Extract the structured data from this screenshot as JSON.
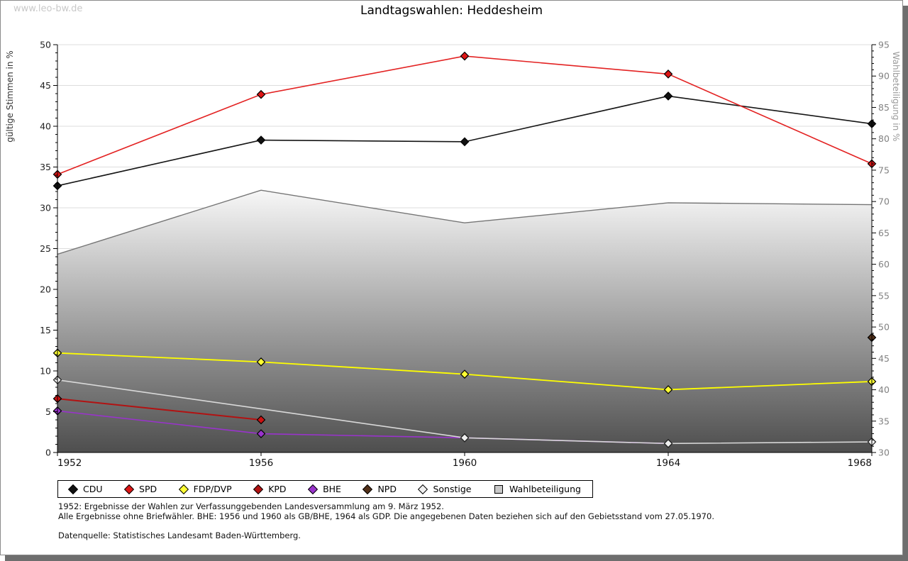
{
  "page": {
    "watermark": "www.leo-bw.de",
    "title": "Landtagswahlen: Heddesheim",
    "footnotes": [
      "1952: Ergebnisse der Wahlen zur Verfassunggebenden Landesversammlung am 9. März 1952.",
      "Alle Ergebnisse ohne Briefwähler. BHE: 1956 und 1960 als GB/BHE, 1964 als GDP. Die angegebenen Daten beziehen sich auf den Gebietsstand vom 27.05.1970.",
      "Datenquelle: Statistisches Landesamt Baden-Württemberg."
    ]
  },
  "chart_data": {
    "type": "line",
    "title": "Landtagswahlen: Heddesheim",
    "x": [
      1952,
      1956,
      1960,
      1964,
      1968
    ],
    "left_axis": {
      "label": "gültige Stimmen in %",
      "min": 0,
      "max": 50,
      "tick_step": 5,
      "minor_step": 1
    },
    "right_axis": {
      "label": "Wahlbeteiligung in %",
      "min": 30,
      "max": 95,
      "tick_step": 5,
      "minor_step": 1
    },
    "grid": "horizontal-left-axis",
    "colors": {
      "gridline": "#dddddd",
      "axis": "#000000",
      "area_border": "#757575",
      "area_top": "#f7f7f7",
      "area_bottom": "#4e4e4e",
      "left_tick_text": "#222222",
      "right_tick_text": "#828282"
    },
    "area_series": {
      "name": "Wahlbeteiligung",
      "axis": "right",
      "values": [
        61.6,
        71.8,
        66.6,
        69.8,
        69.5
      ]
    },
    "series": [
      {
        "name": "KPD",
        "axis": "left",
        "line": "#b21212",
        "width": 2,
        "marker": "#cc1111",
        "stroke": "#000000",
        "values": [
          6.6,
          4.0,
          null,
          null,
          null
        ]
      },
      {
        "name": "BHE",
        "axis": "left",
        "line": "#9933cc",
        "width": 1.6,
        "marker": "#9933cc",
        "stroke": "#000000",
        "values": [
          5.1,
          2.3,
          1.8,
          1.1,
          null
        ]
      },
      {
        "name": "Sonstige",
        "axis": "left",
        "line": "#d9d9d9",
        "width": 1.6,
        "marker": "#efefef",
        "stroke": "#222222",
        "values": [
          8.9,
          null,
          1.8,
          1.1,
          1.3
        ]
      },
      {
        "name": "FDP/DVP",
        "axis": "left",
        "line": "#ffff00",
        "width": 1.8,
        "marker": "#ffff33",
        "stroke": "#000000",
        "values": [
          12.2,
          11.1,
          9.6,
          7.7,
          8.7
        ]
      },
      {
        "name": "CDU",
        "axis": "left",
        "line": "#151515",
        "width": 1.6,
        "marker": "#111111",
        "stroke": "#000000",
        "values": [
          32.7,
          38.3,
          38.1,
          43.7,
          40.3
        ]
      },
      {
        "name": "SPD",
        "axis": "left",
        "line": "#e32222",
        "width": 1.6,
        "marker": "#dd1515",
        "stroke": "#000000",
        "values": [
          34.1,
          43.9,
          48.6,
          46.4,
          35.4
        ]
      },
      {
        "name": "NPD",
        "axis": "left",
        "line": "#523018",
        "width": 1.6,
        "marker": "#523018",
        "stroke": "#000000",
        "values": [
          null,
          null,
          null,
          null,
          14.1
        ]
      }
    ],
    "legend": [
      {
        "label": "CDU",
        "color": "#111111",
        "shape": "diamond"
      },
      {
        "label": "SPD",
        "color": "#dd1515",
        "shape": "diamond"
      },
      {
        "label": "FDP/DVP",
        "color": "#ffff33",
        "shape": "diamond"
      },
      {
        "label": "KPD",
        "color": "#b21212",
        "shape": "diamond"
      },
      {
        "label": "BHE",
        "color": "#9933cc",
        "shape": "diamond"
      },
      {
        "label": "NPD",
        "color": "#523018",
        "shape": "diamond"
      },
      {
        "label": "Sonstige",
        "color": "#efefef",
        "shape": "diamond"
      },
      {
        "label": "Wahlbeteiligung",
        "color": "#c8c8c8",
        "shape": "square"
      }
    ]
  }
}
